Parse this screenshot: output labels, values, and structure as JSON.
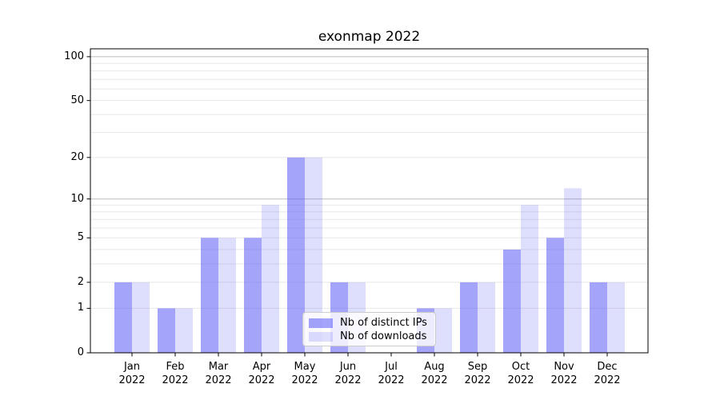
{
  "title": "exonmap 2022",
  "legend": {
    "position": "lower center",
    "items": [
      {
        "label": "Nb of distinct IPs",
        "color": "rgba(90,90,245,0.55)"
      },
      {
        "label": "Nb of downloads",
        "color": "rgba(90,90,245,0.20)"
      }
    ]
  },
  "chart_data": {
    "type": "bar",
    "title": "exonmap 2022",
    "xlabel": "",
    "ylabel": "",
    "yscale": "symlog (log1p)",
    "ylim": [
      0,
      113
    ],
    "categories": [
      "Jan 2022",
      "Feb 2022",
      "Mar 2022",
      "Apr 2022",
      "May 2022",
      "Jun 2022",
      "Jul 2022",
      "Aug 2022",
      "Sep 2022",
      "Oct 2022",
      "Nov 2022",
      "Dec 2022"
    ],
    "x_ticks": [
      {
        "month": "Jan",
        "year": "2022"
      },
      {
        "month": "Feb",
        "year": "2022"
      },
      {
        "month": "Mar",
        "year": "2022"
      },
      {
        "month": "Apr",
        "year": "2022"
      },
      {
        "month": "May",
        "year": "2022"
      },
      {
        "month": "Jun",
        "year": "2022"
      },
      {
        "month": "Jul",
        "year": "2022"
      },
      {
        "month": "Aug",
        "year": "2022"
      },
      {
        "month": "Sep",
        "year": "2022"
      },
      {
        "month": "Oct",
        "year": "2022"
      },
      {
        "month": "Nov",
        "year": "2022"
      },
      {
        "month": "Dec",
        "year": "2022"
      }
    ],
    "series": [
      {
        "name": "Nb of distinct IPs",
        "color": "rgba(90,90,245,0.55)",
        "values": [
          2,
          1,
          5,
          5,
          20,
          2,
          0,
          1,
          2,
          4,
          5,
          2
        ]
      },
      {
        "name": "Nb of downloads",
        "color": "rgba(90,90,245,0.20)",
        "values": [
          2,
          1,
          5,
          9,
          20,
          2,
          0,
          1,
          2,
          9,
          12,
          2
        ]
      }
    ],
    "y_ticks": [
      0,
      1,
      2,
      5,
      10,
      20,
      50,
      100
    ],
    "grid": {
      "minor": [
        1,
        2,
        3,
        4,
        5,
        6,
        7,
        8,
        9,
        20,
        30,
        40,
        50,
        60,
        70,
        80,
        90
      ],
      "major": [
        10,
        100
      ],
      "minor_color": "#e8e8e8",
      "major_color": "#bdbdbd"
    },
    "spine_color": "#000000",
    "background": "#ffffff"
  }
}
